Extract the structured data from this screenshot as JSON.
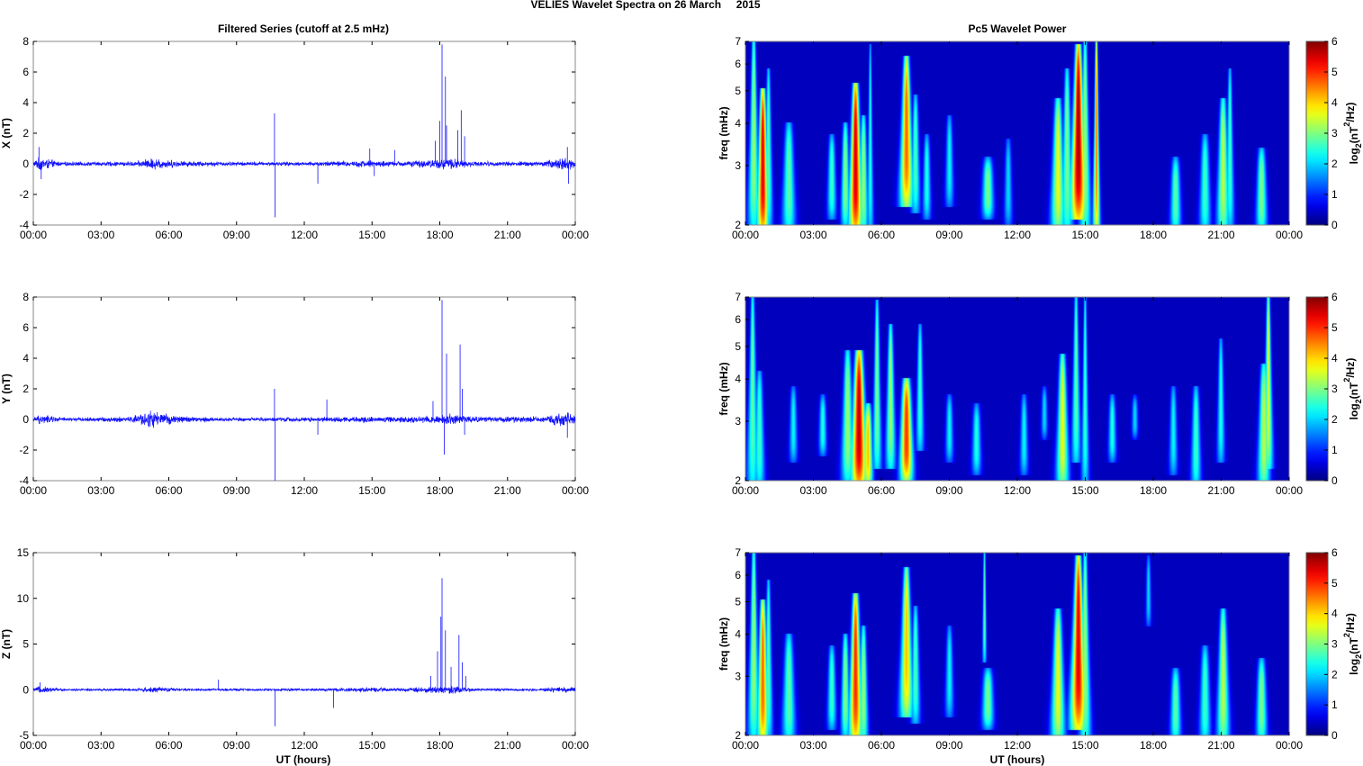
{
  "figure": {
    "suptitle": "VELIES Wavelet Spectra on 26 March     2015",
    "left_title": "Filtered Series (cutoff at 2.5 mHz)",
    "right_title": "Pc5 Wavelet Power",
    "xlabel": "UT (hours)"
  },
  "colors": {
    "trace": "#1010ff",
    "colormap": "jet",
    "background_low": "#00008f"
  },
  "chart_data": [
    {
      "type": "line",
      "ylabel": "X (nT)",
      "x_ticks": [
        "00:00",
        "03:00",
        "06:00",
        "09:00",
        "12:00",
        "15:00",
        "18:00",
        "21:00",
        "00:00"
      ],
      "xlim": [
        0,
        24
      ],
      "ylim": [
        -4,
        8
      ],
      "y_ticks": [
        "-4",
        "-2",
        "0",
        "2",
        "4",
        "6",
        "8"
      ],
      "y_tick_values": [
        -4,
        -2,
        0,
        2,
        4,
        6,
        8
      ],
      "noise_profile": [
        [
          0,
          0.12
        ],
        [
          0.3,
          0.35
        ],
        [
          1.2,
          0.1
        ],
        [
          4.5,
          0.12
        ],
        [
          5.3,
          0.3
        ],
        [
          6.5,
          0.15
        ],
        [
          8,
          0.12
        ],
        [
          10,
          0.1
        ],
        [
          12,
          0.1
        ],
        [
          14.8,
          0.18
        ],
        [
          16,
          0.12
        ],
        [
          17.5,
          0.2
        ],
        [
          18.5,
          0.3
        ],
        [
          19.5,
          0.12
        ],
        [
          22.5,
          0.12
        ],
        [
          23.6,
          0.35
        ],
        [
          24,
          0.2
        ]
      ],
      "spikes": [
        [
          0.25,
          1.1
        ],
        [
          0.35,
          -1.0
        ],
        [
          10.68,
          3.3
        ],
        [
          10.7,
          -3.5
        ],
        [
          12.6,
          -1.3
        ],
        [
          14.9,
          1.0
        ],
        [
          15.1,
          -0.8
        ],
        [
          16.0,
          0.9
        ],
        [
          17.8,
          1.5
        ],
        [
          18.0,
          2.8
        ],
        [
          18.1,
          7.8
        ],
        [
          18.25,
          5.7
        ],
        [
          18.3,
          2.5
        ],
        [
          18.8,
          2.2
        ],
        [
          18.95,
          3.5
        ],
        [
          19.1,
          1.8
        ],
        [
          23.65,
          1.1
        ],
        [
          23.7,
          -1.3
        ]
      ]
    },
    {
      "type": "line",
      "ylabel": "Y (nT)",
      "x_ticks": [
        "00:00",
        "03:00",
        "06:00",
        "09:00",
        "12:00",
        "15:00",
        "18:00",
        "21:00",
        "00:00"
      ],
      "xlim": [
        0,
        24
      ],
      "ylim": [
        -4,
        8
      ],
      "y_ticks": [
        "-4",
        "-2",
        "0",
        "2",
        "4",
        "6",
        "8"
      ],
      "y_tick_values": [
        -4,
        -2,
        0,
        2,
        4,
        6,
        8
      ],
      "noise_profile": [
        [
          0,
          0.1
        ],
        [
          0.3,
          0.25
        ],
        [
          1.5,
          0.08
        ],
        [
          4.3,
          0.15
        ],
        [
          5.2,
          0.45
        ],
        [
          6.2,
          0.2
        ],
        [
          8,
          0.1
        ],
        [
          10,
          0.1
        ],
        [
          12,
          0.12
        ],
        [
          14,
          0.15
        ],
        [
          16,
          0.15
        ],
        [
          17.5,
          0.2
        ],
        [
          18.5,
          0.3
        ],
        [
          19.5,
          0.15
        ],
        [
          22.5,
          0.15
        ],
        [
          23.6,
          0.35
        ],
        [
          24,
          0.2
        ]
      ],
      "spikes": [
        [
          10.68,
          2.0
        ],
        [
          10.7,
          -4.0
        ],
        [
          12.6,
          -1.0
        ],
        [
          13.0,
          1.3
        ],
        [
          17.7,
          1.2
        ],
        [
          18.1,
          7.8
        ],
        [
          18.2,
          -2.3
        ],
        [
          18.3,
          4.3
        ],
        [
          18.9,
          4.9
        ],
        [
          19.0,
          2.0
        ],
        [
          19.1,
          -1.0
        ],
        [
          23.65,
          -1.2
        ]
      ]
    },
    {
      "type": "line",
      "ylabel": "Z (nT)",
      "x_ticks": [
        "00:00",
        "03:00",
        "06:00",
        "09:00",
        "12:00",
        "15:00",
        "18:00",
        "21:00",
        "00:00"
      ],
      "xlim": [
        0,
        24
      ],
      "ylim": [
        -5,
        15
      ],
      "y_ticks": [
        "-5",
        "0",
        "5",
        "10",
        "15"
      ],
      "y_tick_values": [
        -5,
        0,
        5,
        10,
        15
      ],
      "noise_profile": [
        [
          0,
          0.12
        ],
        [
          0.3,
          0.3
        ],
        [
          1.5,
          0.08
        ],
        [
          4.5,
          0.12
        ],
        [
          5.3,
          0.25
        ],
        [
          6.5,
          0.12
        ],
        [
          8,
          0.1
        ],
        [
          10,
          0.1
        ],
        [
          12,
          0.1
        ],
        [
          14.8,
          0.2
        ],
        [
          16,
          0.12
        ],
        [
          17.5,
          0.25
        ],
        [
          18.5,
          0.35
        ],
        [
          19.5,
          0.12
        ],
        [
          22.5,
          0.12
        ],
        [
          23.6,
          0.3
        ],
        [
          24,
          0.2
        ]
      ],
      "spikes": [
        [
          0.3,
          0.8
        ],
        [
          8.2,
          1.1
        ],
        [
          10.7,
          -4.0
        ],
        [
          13.3,
          -2.0
        ],
        [
          17.6,
          1.5
        ],
        [
          17.9,
          4.2
        ],
        [
          18.05,
          8.0
        ],
        [
          18.1,
          12.2
        ],
        [
          18.25,
          6.5
        ],
        [
          18.5,
          2.5
        ],
        [
          18.85,
          6.0
        ],
        [
          19.0,
          3.0
        ],
        [
          19.15,
          1.5
        ]
      ]
    },
    {
      "type": "heatmap",
      "ylabel": "freq (mHz)",
      "xlim": [
        0,
        24
      ],
      "ylim": [
        2,
        7
      ],
      "y_scale": "log",
      "x_ticks": [
        "00:00",
        "03:00",
        "06:00",
        "09:00",
        "12:00",
        "15:00",
        "18:00",
        "21:00",
        "00:00"
      ],
      "y_ticks": [
        "2",
        "3",
        "4",
        "5",
        "6",
        "7"
      ],
      "y_tick_values": [
        2,
        3,
        4,
        5,
        6,
        7
      ],
      "colorbar": {
        "label": "log2(nT2/Hz)",
        "range": [
          0,
          6
        ],
        "ticks": [
          "0",
          "1",
          "2",
          "3",
          "4",
          "5",
          "6"
        ]
      },
      "blobs": [
        [
          0.35,
          2.1,
          7.0,
          0.12,
          3.0
        ],
        [
          0.75,
          2.0,
          4.8,
          0.14,
          5.4
        ],
        [
          1.0,
          2.1,
          5.5,
          0.1,
          2.5
        ],
        [
          1.9,
          2.0,
          3.8,
          0.18,
          2.6
        ],
        [
          3.8,
          2.2,
          3.5,
          0.13,
          2.4
        ],
        [
          4.4,
          2.1,
          3.8,
          0.12,
          2.9
        ],
        [
          4.85,
          2.0,
          5.0,
          0.16,
          5.5
        ],
        [
          5.2,
          2.0,
          4.0,
          0.12,
          3.0
        ],
        [
          5.5,
          2.0,
          6.5,
          0.07,
          2.2
        ],
        [
          7.1,
          2.4,
          6.0,
          0.16,
          4.6
        ],
        [
          7.5,
          2.3,
          4.6,
          0.12,
          2.5
        ],
        [
          8.0,
          2.2,
          3.5,
          0.12,
          2.2
        ],
        [
          9.0,
          2.4,
          4.0,
          0.12,
          2.0
        ],
        [
          10.7,
          2.2,
          3.0,
          0.18,
          2.8
        ],
        [
          11.6,
          2.1,
          3.4,
          0.12,
          1.8
        ],
        [
          13.8,
          2.0,
          4.5,
          0.18,
          3.5
        ],
        [
          14.2,
          2.0,
          5.5,
          0.14,
          2.8
        ],
        [
          14.7,
          2.2,
          6.5,
          0.18,
          5.8
        ],
        [
          15.0,
          2.0,
          7.0,
          0.12,
          3.0
        ],
        [
          15.5,
          2.0,
          7.0,
          0.07,
          4.5
        ],
        [
          19.0,
          2.0,
          3.0,
          0.16,
          2.6
        ],
        [
          20.3,
          2.0,
          3.5,
          0.16,
          2.4
        ],
        [
          21.1,
          2.0,
          4.5,
          0.16,
          3.2
        ],
        [
          21.4,
          2.1,
          5.5,
          0.1,
          2.4
        ],
        [
          22.8,
          2.0,
          3.2,
          0.16,
          2.8
        ]
      ]
    },
    {
      "type": "heatmap",
      "ylabel": "freq (mHz)",
      "xlim": [
        0,
        24
      ],
      "ylim": [
        2,
        7
      ],
      "y_scale": "log",
      "x_ticks": [
        "00:00",
        "03:00",
        "06:00",
        "09:00",
        "12:00",
        "15:00",
        "18:00",
        "21:00",
        "00:00"
      ],
      "y_ticks": [
        "2",
        "3",
        "4",
        "5",
        "6",
        "7"
      ],
      "y_tick_values": [
        2,
        3,
        4,
        5,
        6,
        7
      ],
      "colorbar": {
        "label": "log2(nT2/Hz)",
        "range": [
          0,
          6
        ],
        "ticks": [
          "0",
          "1",
          "2",
          "3",
          "4",
          "5",
          "6"
        ]
      },
      "blobs": [
        [
          0.3,
          2.0,
          7.0,
          0.12,
          2.6
        ],
        [
          0.6,
          2.0,
          4.0,
          0.14,
          2.4
        ],
        [
          2.1,
          2.4,
          3.6,
          0.12,
          2.0
        ],
        [
          3.4,
          2.5,
          3.4,
          0.12,
          2.2
        ],
        [
          4.5,
          2.1,
          4.6,
          0.16,
          3.0
        ],
        [
          5.0,
          2.0,
          4.6,
          0.2,
          5.6
        ],
        [
          5.4,
          2.0,
          3.2,
          0.14,
          4.0
        ],
        [
          5.8,
          2.3,
          6.5,
          0.1,
          2.8
        ],
        [
          6.4,
          2.3,
          5.5,
          0.12,
          3.0
        ],
        [
          7.1,
          2.1,
          3.8,
          0.18,
          4.9
        ],
        [
          7.7,
          2.6,
          5.5,
          0.1,
          2.4
        ],
        [
          9.0,
          2.4,
          3.4,
          0.12,
          2.0
        ],
        [
          10.2,
          2.2,
          3.2,
          0.14,
          2.2
        ],
        [
          12.3,
          2.2,
          3.4,
          0.12,
          2.0
        ],
        [
          13.2,
          2.8,
          3.6,
          0.1,
          1.8
        ],
        [
          14.0,
          2.0,
          4.5,
          0.16,
          3.5
        ],
        [
          14.6,
          2.4,
          7.0,
          0.1,
          2.6
        ],
        [
          15.0,
          2.1,
          7.0,
          0.08,
          2.4
        ],
        [
          16.2,
          2.4,
          3.4,
          0.12,
          2.2
        ],
        [
          17.2,
          2.8,
          3.4,
          0.1,
          1.8
        ],
        [
          18.9,
          2.2,
          3.6,
          0.12,
          2.0
        ],
        [
          19.9,
          2.0,
          3.6,
          0.14,
          2.4
        ],
        [
          21.0,
          2.4,
          5.0,
          0.1,
          2.2
        ],
        [
          22.9,
          2.0,
          4.2,
          0.16,
          3.2
        ],
        [
          23.1,
          2.3,
          7.0,
          0.1,
          3.4
        ]
      ]
    },
    {
      "type": "heatmap",
      "ylabel": "freq (mHz)",
      "xlim": [
        0,
        24
      ],
      "ylim": [
        2,
        7
      ],
      "y_scale": "log",
      "x_ticks": [
        "00:00",
        "03:00",
        "06:00",
        "09:00",
        "12:00",
        "15:00",
        "18:00",
        "21:00",
        "00:00"
      ],
      "y_ticks": [
        "2",
        "3",
        "4",
        "5",
        "6",
        "7"
      ],
      "y_tick_values": [
        2,
        3,
        4,
        5,
        6,
        7
      ],
      "colorbar": {
        "label": "log2(nT2/Hz)",
        "range": [
          0,
          6
        ],
        "ticks": [
          "0",
          "1",
          "2",
          "3",
          "4",
          "5",
          "6"
        ]
      },
      "blobs": [
        [
          0.35,
          2.1,
          7.0,
          0.12,
          3.0
        ],
        [
          0.75,
          2.0,
          4.8,
          0.14,
          4.6
        ],
        [
          1.0,
          2.1,
          5.5,
          0.1,
          2.5
        ],
        [
          1.9,
          2.0,
          3.8,
          0.18,
          2.6
        ],
        [
          3.8,
          2.2,
          3.5,
          0.13,
          2.4
        ],
        [
          4.4,
          2.1,
          3.8,
          0.12,
          2.9
        ],
        [
          4.85,
          2.0,
          5.0,
          0.16,
          5.0
        ],
        [
          5.2,
          2.0,
          4.0,
          0.12,
          3.0
        ],
        [
          7.1,
          2.4,
          6.0,
          0.16,
          4.0
        ],
        [
          7.5,
          2.3,
          4.6,
          0.12,
          2.5
        ],
        [
          9.0,
          2.4,
          4.0,
          0.12,
          2.0
        ],
        [
          10.7,
          2.2,
          3.0,
          0.18,
          2.8
        ],
        [
          10.55,
          3.5,
          7.0,
          0.05,
          2.6
        ],
        [
          13.8,
          2.0,
          4.5,
          0.18,
          3.5
        ],
        [
          14.7,
          2.2,
          6.5,
          0.18,
          5.4
        ],
        [
          15.0,
          2.0,
          7.0,
          0.12,
          3.0
        ],
        [
          17.8,
          4.5,
          6.5,
          0.08,
          1.8
        ],
        [
          19.0,
          2.0,
          3.0,
          0.16,
          2.6
        ],
        [
          20.3,
          2.0,
          3.5,
          0.16,
          2.4
        ],
        [
          21.1,
          2.0,
          4.5,
          0.16,
          3.2
        ],
        [
          22.8,
          2.0,
          3.2,
          0.16,
          2.8
        ]
      ]
    }
  ]
}
